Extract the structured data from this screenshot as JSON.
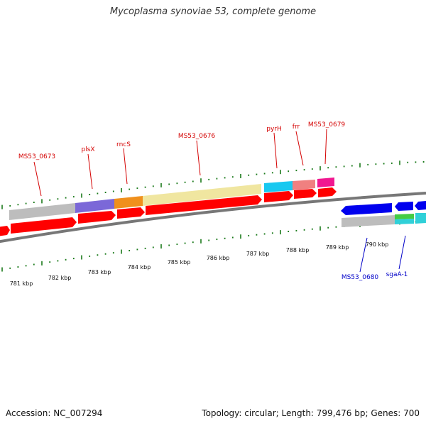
{
  "title": "Mycoplasma synoviae 53, complete genome",
  "footer": {
    "accession": "Accession: NC_007294",
    "summary": "Topology: circular; Length: 799,476 bp; Genes: 700"
  },
  "colors": {
    "forward_cds": "#ff0000",
    "reverse_cds": "#0000ee",
    "backbone": "#888888",
    "tick": "#1a7a1a",
    "top_label": "#d40000",
    "bottom_label": "#0000c8",
    "cog_gray": "#bdbdbd",
    "cog_purple": "#7b68d8",
    "cog_orange": "#f0901c",
    "cog_khaki": "#f0e6a0",
    "cog_cyan": "#18c8f0",
    "cog_pink": "#f08080",
    "cog_magenta": "#f01890",
    "cog_green": "#44cc44",
    "cog_teal": "#30d0d8"
  },
  "labels_top": [
    "MS53_0673",
    "plsX",
    "rncS",
    "MS53_0676",
    "pyrH",
    "frr",
    "MS53_0679"
  ],
  "labels_bottom": [
    "MS53_0680",
    "sgaA-1"
  ],
  "scale_labels": [
    "781 kbp",
    "782 kbp",
    "783 kbp",
    "784 kbp",
    "785 kbp",
    "786 kbp",
    "787 kbp",
    "788 kbp",
    "789 kbp",
    "790 kbp"
  ]
}
